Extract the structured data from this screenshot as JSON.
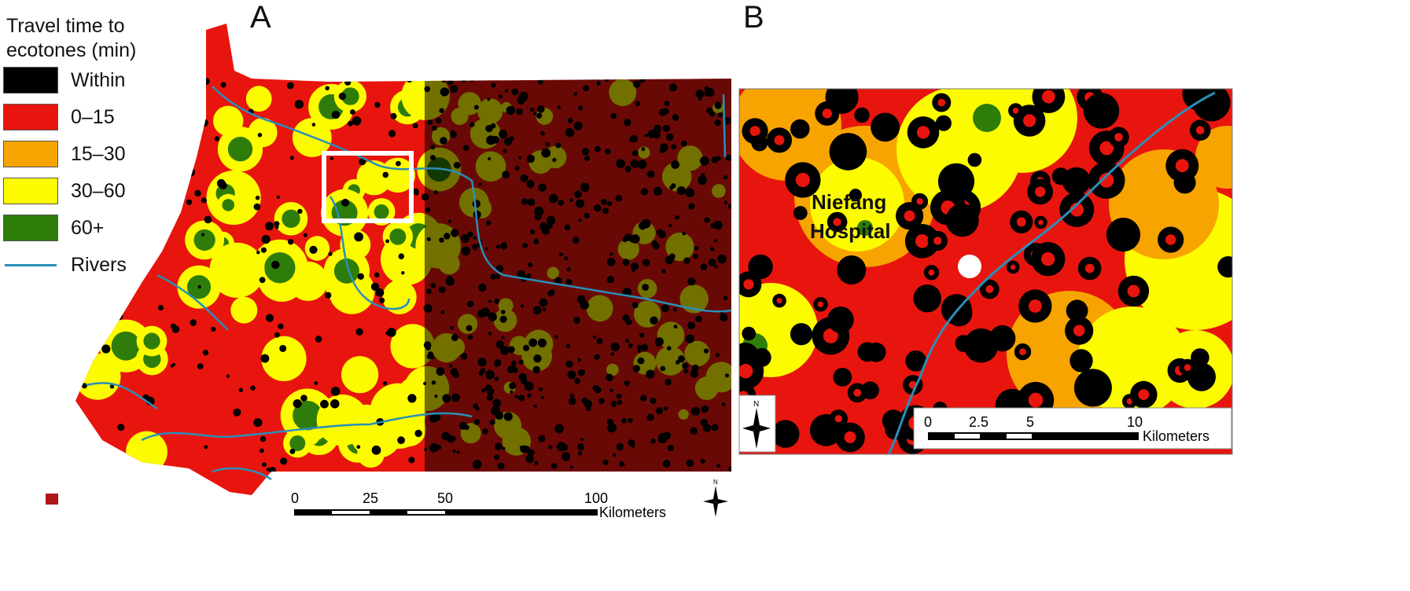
{
  "panels": {
    "a": "A",
    "b": "B"
  },
  "legend": {
    "title_line1": "Travel time to",
    "title_line2": "ecotones (min)",
    "items": [
      {
        "label": "Within",
        "color": "#000000",
        "type": "fill"
      },
      {
        "label": "0–15",
        "color": "#e8150e",
        "type": "fill"
      },
      {
        "label": "15–30",
        "color": "#f7a400",
        "type": "fill"
      },
      {
        "label": "30–60",
        "color": "#fdfb00",
        "type": "fill"
      },
      {
        "label": "60+",
        "color": "#2e7d0b",
        "type": "fill"
      },
      {
        "label": "Rivers",
        "color": "#2a8fb8",
        "type": "line"
      }
    ]
  },
  "map_a": {
    "scale": {
      "ticks": [
        "0",
        "25",
        "50",
        "100"
      ],
      "unit": "Kilometers"
    },
    "north": "N"
  },
  "map_b": {
    "place_label_line1": "Niefang",
    "place_label_line2": "Hospital",
    "scale": {
      "ticks": [
        "0",
        "2.5",
        "5",
        "10"
      ],
      "unit": "Kilometers"
    },
    "north": "N"
  }
}
